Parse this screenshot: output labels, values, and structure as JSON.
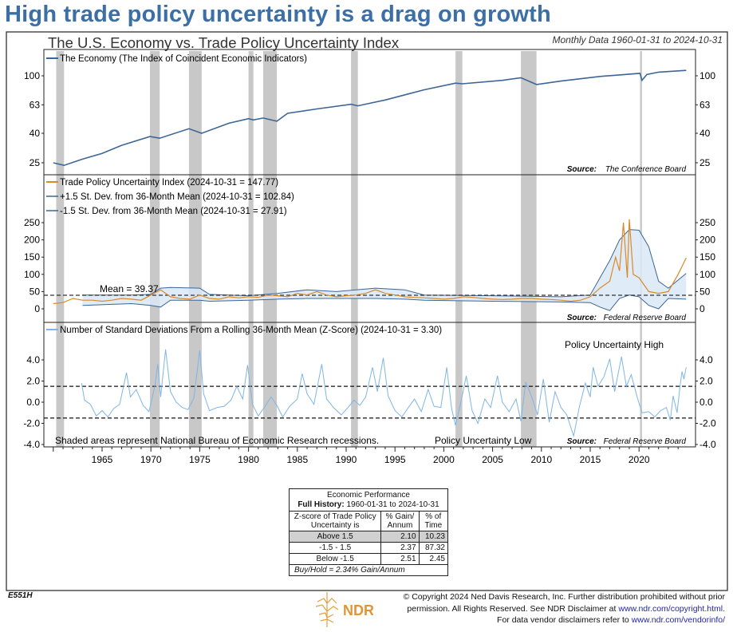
{
  "headline": "High trade policy uncertainty is a drag on growth",
  "chart_title": "The U.S. Economy vs. Trade Policy Uncertainty Index",
  "date_range": "Monthly Data 1960-01-31 to 2024-10-31",
  "chart_data": [
    {
      "type": "line",
      "panel": "top",
      "scale": "log",
      "legend": "The Economy (The Index of Coincident Economic Indicators)",
      "source_label": "Source:",
      "source": "The Conference Board",
      "yticks": [
        100,
        63,
        40,
        25
      ],
      "colors": {
        "line": "#3c6696"
      },
      "x": [
        1960.0,
        1961.1,
        1963,
        1965,
        1967,
        1969.9,
        1970.9,
        1973.9,
        1975.2,
        1978,
        1980.0,
        1980.5,
        1981.5,
        1982.9,
        1984,
        1987,
        1990.5,
        1991.2,
        1994,
        1998,
        2001.2,
        2001.9,
        2006,
        2007.9,
        2009.5,
        2012,
        2016,
        2020.1,
        2020.3,
        2020.8,
        2022,
        2024.83
      ],
      "values": [
        25,
        24,
        26.5,
        29,
        33,
        38,
        37,
        43,
        40,
        47,
        50.5,
        49.5,
        51,
        48.5,
        55,
        59,
        63.5,
        62,
        68,
        80,
        89,
        88,
        93,
        97,
        87,
        92,
        99,
        104,
        93,
        102,
        106,
        109
      ]
    },
    {
      "type": "line",
      "panel": "middle",
      "legend": [
        "Trade Policy Uncertainty Index (2024-10-31 = 147.77)",
        "+1.5 St. Dev. from 36-Month Mean (2024-10-31 = 102.84)",
        "-1.5 St. Dev. from 36-Month Mean (2024-10-31 = 27.91)"
      ],
      "mean_label": "Mean = 39.37",
      "mean": 39.37,
      "source_label": "Source:",
      "source": "Federal Reserve Board",
      "yticks": [
        250,
        200,
        150,
        100,
        50,
        0
      ],
      "ylim": [
        0,
        250
      ],
      "colors": {
        "tpu": "#d9892a",
        "band": "#3c6696",
        "band_fill": "#d9e9f7"
      },
      "tpu_x": [
        1960,
        1961,
        1962,
        1963,
        1964,
        1965,
        1966,
        1967,
        1968,
        1969,
        1970,
        1971,
        1972,
        1973,
        1974,
        1975,
        1976,
        1977,
        1978,
        1979,
        1980,
        1981,
        1982,
        1983,
        1984,
        1985,
        1986,
        1987,
        1988,
        1989,
        1990,
        1991,
        1992,
        1993,
        1994,
        1995,
        1996,
        1997,
        1998,
        1999,
        2000,
        2001,
        2002,
        2003,
        2004,
        2005,
        2006,
        2007,
        2008,
        2009,
        2010,
        2011,
        2012,
        2013,
        2014,
        2015,
        2016,
        2017,
        2017.6,
        2018,
        2018.4,
        2018.8,
        2019,
        2019.4,
        2020,
        2021,
        2022,
        2023,
        2024,
        2024.83
      ],
      "tpu": [
        15,
        18,
        30,
        25,
        25,
        22,
        25,
        30,
        28,
        25,
        40,
        55,
        35,
        30,
        28,
        40,
        30,
        28,
        35,
        32,
        35,
        33,
        40,
        38,
        35,
        45,
        40,
        50,
        40,
        35,
        38,
        40,
        45,
        55,
        45,
        40,
        35,
        33,
        32,
        30,
        28,
        30,
        35,
        33,
        30,
        28,
        27,
        28,
        30,
        30,
        28,
        27,
        25,
        22,
        25,
        35,
        60,
        80,
        150,
        110,
        250,
        90,
        260,
        100,
        90,
        50,
        45,
        50,
        100,
        147.77
      ],
      "band_x": [
        1963,
        1968,
        1970,
        1971,
        1972,
        1975,
        1976,
        1980,
        1983,
        1986,
        1989,
        1993,
        1996,
        1998,
        2005,
        2012,
        2015,
        2016,
        2017,
        2018,
        2019,
        2020,
        2021,
        2022,
        2023,
        2024.83
      ],
      "upper": [
        40,
        40,
        42,
        60,
        62,
        60,
        42,
        38,
        45,
        55,
        50,
        60,
        55,
        40,
        38,
        35,
        40,
        90,
        140,
        200,
        230,
        228,
        180,
        80,
        60,
        102.84
      ],
      "lower": [
        10,
        15,
        10,
        5,
        25,
        25,
        22,
        25,
        28,
        30,
        30,
        30,
        28,
        25,
        22,
        20,
        18,
        5,
        -5,
        30,
        40,
        35,
        10,
        0,
        30,
        27.91
      ]
    },
    {
      "type": "line",
      "panel": "bottom",
      "legend": "Number of Standard Deviations From a Rolling 36-Month Mean (Z-Score) (2024-10-31 = 3.30)",
      "high_label": "Policy Uncertainty High",
      "low_label": "Policy Uncertainty Low",
      "note": "Shaded areas represent National Bureau of Economic Research recessions.",
      "source_label": "Source:",
      "source": "Federal Reserve Board",
      "thresholds": [
        1.5,
        -1.5
      ],
      "yticks": [
        "4.0",
        "2.0",
        "0.0",
        "-2.0",
        "-4.0"
      ],
      "ylim": [
        -4,
        4
      ],
      "colors": {
        "line": "#7fb5e6"
      },
      "x": [
        1962.9,
        1963.2,
        1963.8,
        1964.4,
        1965,
        1965.6,
        1966.2,
        1966.8,
        1967.5,
        1967.9,
        1968.5,
        1969.2,
        1969.8,
        1970.4,
        1970.7,
        1971,
        1971.5,
        1972,
        1972.6,
        1973.2,
        1973.8,
        1974.4,
        1975,
        1975.4,
        1976,
        1976.8,
        1977.5,
        1978.2,
        1978.8,
        1979.4,
        1979.9,
        1980.4,
        1981,
        1981.7,
        1982.3,
        1982.9,
        1983.5,
        1984.2,
        1985,
        1985.5,
        1986,
        1986.7,
        1987.5,
        1988,
        1988.7,
        1989.5,
        1990.2,
        1990.8,
        1991.4,
        1992,
        1992.7,
        1993.2,
        1993.8,
        1994.3,
        1995,
        1995.7,
        1996.3,
        1997,
        1997.7,
        1998.4,
        1999,
        1999.7,
        2000.3,
        2000.8,
        2001.2,
        2001.8,
        2002.3,
        2002.9,
        2003.5,
        2004.2,
        2004.8,
        2005.5,
        2006,
        2006.7,
        2007.4,
        2007.9,
        2008.4,
        2009,
        2009.6,
        2010.2,
        2010.8,
        2011.4,
        2012,
        2012.6,
        2013.3,
        2013.9,
        2014.5,
        2015,
        2015.3,
        2015.8,
        2016.4,
        2017,
        2017.5,
        2018.2,
        2018.7,
        2019.2,
        2019.8,
        2020.3,
        2021,
        2021.6,
        2022.2,
        2022.8,
        2023.2,
        2023.5,
        2023.9,
        2024.2,
        2024.4,
        2024.6,
        2024.83
      ],
      "values": [
        1.8,
        0.2,
        -0.2,
        -1.3,
        -0.8,
        -1.4,
        -0.6,
        -0.2,
        2.8,
        0.5,
        1.2,
        -0.3,
        -0.9,
        1.5,
        3.6,
        0.5,
        5.0,
        1.0,
        0,
        -0.5,
        -0.7,
        0.4,
        4.9,
        0.8,
        -0.8,
        -0.5,
        -0.4,
        0.2,
        1.5,
        0.3,
        3.5,
        -0.2,
        -1.3,
        -0.4,
        0.5,
        -0.3,
        -1.4,
        -0.4,
        0.3,
        2.7,
        0.8,
        -0.2,
        3.6,
        0.3,
        -0.5,
        -1.2,
        -0.5,
        0.2,
        -0.3,
        0.5,
        3.3,
        1.0,
        4.2,
        0.6,
        -0.8,
        -1.4,
        -0.6,
        0.3,
        -0.9,
        1.2,
        -0.4,
        -0.5,
        3.3,
        -0.6,
        -2.2,
        0.2,
        2.5,
        -0.8,
        -2.0,
        0.3,
        -0.5,
        2.5,
        0,
        -0.9,
        0.3,
        -1.8,
        1.9,
        0.5,
        -1.2,
        2.2,
        -1.9,
        1.0,
        -0.5,
        -1.2,
        -3.2,
        -0.4,
        1.8,
        0.5,
        3.3,
        1.5,
        2.4,
        4.1,
        1.0,
        4.3,
        1.5,
        2.6,
        0.5,
        -1.0,
        -0.9,
        -1.4,
        -0.8,
        -0.5,
        -1.7,
        0.6,
        -1.0,
        1.5,
        2.9,
        2.2,
        3.3
      ]
    }
  ],
  "recessions": [
    [
      1960.3,
      1961.1
    ],
    [
      1969.9,
      1970.9
    ],
    [
      1973.9,
      1975.2
    ],
    [
      1980.0,
      1980.5
    ],
    [
      1981.5,
      1982.9
    ],
    [
      1990.5,
      1991.2
    ],
    [
      2001.2,
      2001.9
    ],
    [
      2007.9,
      2009.5
    ],
    [
      2020.1,
      2020.3
    ]
  ],
  "x_ticks": [
    "1965",
    "1970",
    "1975",
    "1980",
    "1985",
    "1990",
    "1995",
    "2000",
    "2005",
    "2010",
    "2015",
    "2020"
  ],
  "performance_table": {
    "title": "Economic Performance",
    "history_label": "Full History:",
    "history_range": "1960-01-31 to 2024-10-31",
    "headers": [
      "Z-score of Trade Policy Uncertainty is",
      "% Gain/ Annum",
      "% of Time"
    ],
    "rows": [
      {
        "label": "Above 1.5",
        "gain": "2.10",
        "time": "10.23"
      },
      {
        "label": "-1.5 - 1.5",
        "gain": "2.37",
        "time": "87.32"
      },
      {
        "label": "Below -1.5",
        "gain": "2.51",
        "time": "2.45"
      }
    ],
    "buy_hold": "Buy/Hold = 2.34% Gain/Annum"
  },
  "footer": {
    "code": "E551H",
    "logo_text": "NDR",
    "copyright_1": "© Copyright 2024 Ned Davis Research, Inc. Further distribution prohibited without prior",
    "copyright_2": "permission. All Rights Reserved. See NDR Disclaimer at",
    "link_1": "www.ndr.com/copyright.html.",
    "copyright_3": "For data vendor disclaimers refer to",
    "link_2": "www.ndr.com/vendorinfo/"
  }
}
